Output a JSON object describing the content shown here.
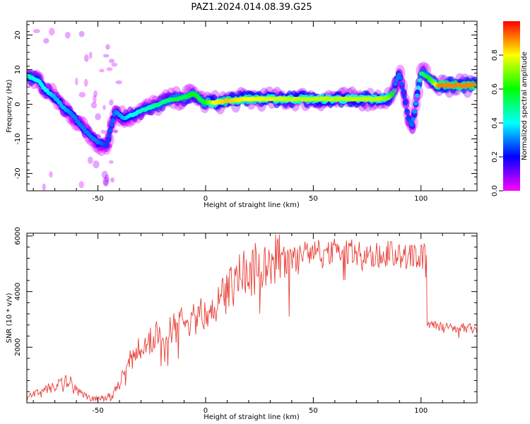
{
  "title": "PAZ1.2024.014.08.39.G25",
  "chart_data": [
    {
      "type": "heatmap",
      "xlabel": "Height of straight line (km)",
      "ylabel": "Frequency (Hz)",
      "xlim": [
        -83,
        126
      ],
      "ylim": [
        -25,
        24
      ],
      "xticks": [
        "-50",
        "0",
        "50",
        "100"
      ],
      "xtick_values": [
        -50,
        0,
        50,
        100
      ],
      "yticks": [
        "-20",
        "-10",
        "0",
        "10",
        "20"
      ],
      "ytick_values": [
        -20,
        -10,
        0,
        10,
        20
      ],
      "colorbar": {
        "label": "Normalized spectral amplitude",
        "range": [
          0,
          1
        ],
        "ticks": [
          "0.0",
          "0.2",
          "0.4",
          "0.6",
          "0.8"
        ],
        "tick_values": [
          0.0,
          0.2,
          0.4,
          0.6,
          0.8
        ],
        "colormap": "gist_rainbow_r"
      },
      "ridge": {
        "x": [
          -82,
          -78,
          -74,
          -70,
          -66,
          -62,
          -58,
          -54,
          -50,
          -46,
          -42,
          -38,
          -34,
          -30,
          -26,
          -22,
          -18,
          -14,
          -10,
          -6,
          -4,
          -2,
          0,
          4,
          10,
          20,
          40,
          60,
          80,
          85,
          88
        ],
        "y": [
          8,
          7,
          4,
          2,
          -1,
          -3,
          -6,
          -9,
          -11,
          -12,
          -2,
          -4,
          -3,
          -2,
          -1,
          0,
          1,
          1.5,
          2,
          3,
          2.5,
          1,
          0.5,
          0.5,
          1,
          1.5,
          1.5,
          1.5,
          1.5,
          2,
          4
        ],
        "amplitude": [
          0.45,
          0.4,
          0.4,
          0.35,
          0.35,
          0.3,
          0.3,
          0.3,
          0.3,
          0.25,
          0.3,
          0.35,
          0.4,
          0.45,
          0.45,
          0.5,
          0.5,
          0.55,
          0.55,
          0.6,
          0.6,
          0.55,
          0.6,
          0.8,
          0.85,
          0.8,
          0.75,
          0.75,
          0.75,
          0.7,
          0.5
        ]
      },
      "branch_right": {
        "x": [
          88,
          90,
          92,
          94,
          96,
          98,
          100,
          103,
          106,
          108,
          112,
          118,
          125
        ],
        "y": [
          6,
          9,
          3,
          -4,
          -6,
          2,
          9,
          8,
          6,
          5.5,
          5.5,
          5.5,
          5.5
        ],
        "amplitude": [
          0.3,
          0.3,
          0.25,
          0.25,
          0.3,
          0.35,
          0.5,
          0.55,
          0.7,
          0.9,
          0.9,
          0.9,
          0.9
        ]
      }
    },
    {
      "type": "line",
      "xlabel": "Height of straight line (km)",
      "ylabel": "SNR (10 * v/v)",
      "xlim": [
        -83,
        126
      ],
      "ylim": [
        0,
        6100
      ],
      "xticks": [
        "-50",
        "0",
        "50",
        "100"
      ],
      "xtick_values": [
        -50,
        0,
        50,
        100
      ],
      "yticks": [
        "2000",
        "4000",
        "6000"
      ],
      "ytick_values": [
        2000,
        4000,
        6000
      ],
      "color": "#e8413a",
      "series": [
        {
          "x": [
            -83,
            -78,
            -73,
            -68,
            -63,
            -58,
            -53,
            -48,
            -43,
            -40,
            -37,
            -34,
            -30,
            -26,
            -22,
            -18,
            -14,
            -10,
            -6,
            -2,
            2,
            6,
            10,
            14,
            18,
            22,
            26,
            30,
            35,
            40,
            45,
            50,
            55,
            60,
            65,
            70,
            75,
            80,
            85,
            90,
            95,
            100,
            102,
            102.5,
            105,
            110,
            115,
            120,
            126
          ],
          "values": [
            150,
            350,
            500,
            700,
            800,
            400,
            120,
            150,
            300,
            700,
            1400,
            1800,
            2000,
            2200,
            2500,
            2500,
            2700,
            2900,
            3000,
            3200,
            3500,
            3600,
            3900,
            4400,
            4700,
            4800,
            4900,
            5100,
            5250,
            5300,
            5350,
            5400,
            5400,
            5450,
            5450,
            5400,
            5350,
            5300,
            5350,
            5300,
            5300,
            5350,
            5400,
            2900,
            2800,
            2750,
            2700,
            2700,
            2650
          ]
        }
      ]
    }
  ]
}
